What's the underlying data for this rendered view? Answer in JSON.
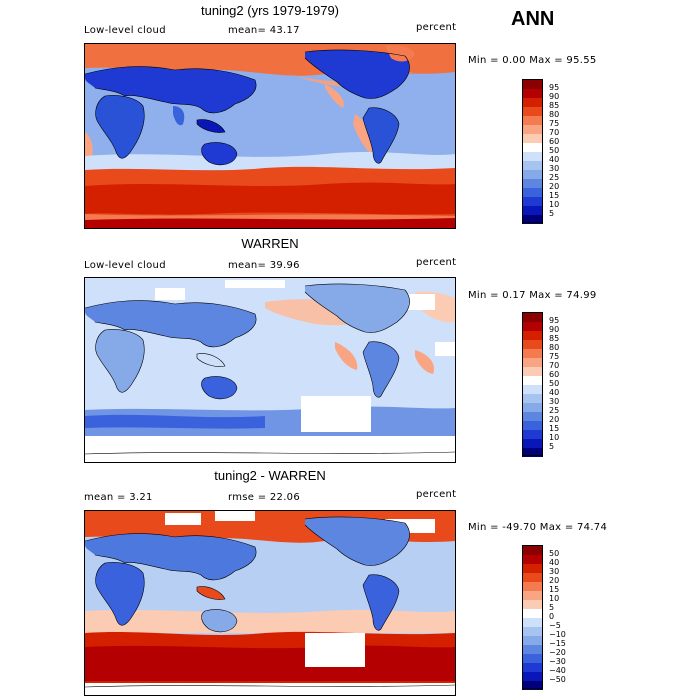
{
  "season": "ANN",
  "panels": [
    {
      "title": "tuning2 (yrs 1979-1979)",
      "left_label": "Low-level cloud",
      "center_label": "mean=  43.17",
      "right_label": "percent",
      "minmax": "Min =   0.00 Max =  95.55",
      "levels": [
        "95",
        "90",
        "85",
        "80",
        "75",
        "70",
        "60",
        "50",
        "40",
        "30",
        "25",
        "20",
        "15",
        "10",
        "5"
      ],
      "colors": [
        "#8b0000",
        "#b40000",
        "#d52000",
        "#e84a1c",
        "#f47a50",
        "#f9a584",
        "#fbcbb4",
        "#ffffff",
        "#cfe0fa",
        "#a7c4f0",
        "#86a9e8",
        "#5d86e0",
        "#3a62dc",
        "#1e3ad2",
        "#0a17b8",
        "#00007a"
      ],
      "ocean_color": "#8fb0ec",
      "land_color": "#2a52d6"
    },
    {
      "title": "WARREN",
      "left_label": "Low-level cloud",
      "center_label": "mean=  39.96",
      "right_label": "percent",
      "minmax": "Min =   0.17 Max =  74.99",
      "levels": [
        "95",
        "90",
        "85",
        "80",
        "75",
        "70",
        "60",
        "50",
        "40",
        "30",
        "25",
        "20",
        "15",
        "10",
        "5"
      ],
      "colors": [
        "#8b0000",
        "#b40000",
        "#d52000",
        "#e84a1c",
        "#f47a50",
        "#f9a584",
        "#fbcbb4",
        "#ffffff",
        "#cfe0fa",
        "#a7c4f0",
        "#86a9e8",
        "#5d86e0",
        "#3a62dc",
        "#1e3ad2",
        "#0a17b8",
        "#00007a"
      ],
      "ocean_color": "#cfe0fa",
      "land_color": "#6f95e4"
    },
    {
      "title": "tuning2 - WARREN",
      "left_label": "mean =   3.21",
      "center_label": "rmse =  22.06",
      "right_label": "percent",
      "minmax": "Min = -49.70 Max =  74.74",
      "levels": [
        "50",
        "40",
        "30",
        "20",
        "15",
        "10",
        "5",
        "0",
        "−5",
        "−10",
        "−15",
        "−20",
        "−30",
        "−40",
        "−50"
      ],
      "colors": [
        "#8b0000",
        "#b40000",
        "#d52000",
        "#e84a1c",
        "#f47a50",
        "#f9a584",
        "#fbcbb4",
        "#ffffff",
        "#cfe0fa",
        "#a7c4f0",
        "#86a9e8",
        "#5d86e0",
        "#3a62dc",
        "#1e3ad2",
        "#0a17b8",
        "#00007a"
      ],
      "ocean_color": "#b8cff4",
      "land_color": "#4d79de"
    }
  ]
}
